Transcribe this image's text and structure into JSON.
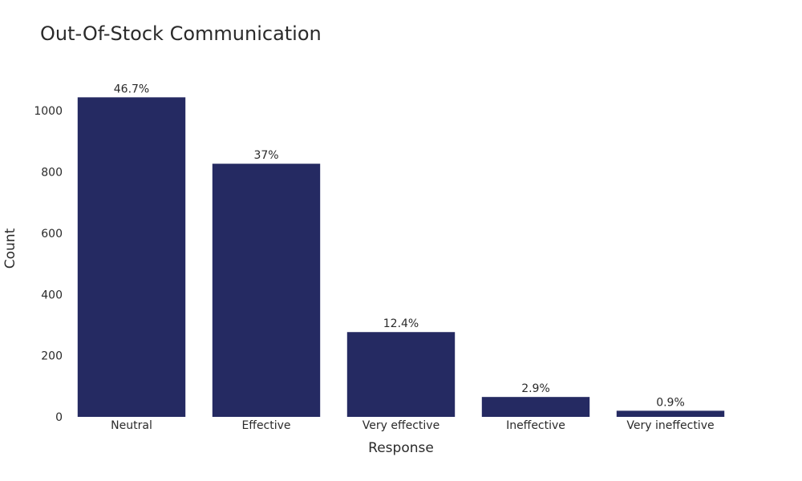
{
  "chart_data": {
    "type": "bar",
    "title": "Out-Of-Stock Communication",
    "xlabel": "Response",
    "ylabel": "Count",
    "categories": [
      "Neutral",
      "Effective",
      "Very effective",
      "Ineffective",
      "Very ineffective"
    ],
    "values": [
      1044,
      827,
      277,
      65,
      20
    ],
    "data_labels": [
      "46.7%",
      "37%",
      "12.4%",
      "2.9%",
      "0.9%"
    ],
    "yticks": [
      0,
      200,
      400,
      600,
      800,
      1000
    ],
    "ytick_labels": [
      "0",
      "200",
      "400",
      "600",
      "800",
      "1000"
    ],
    "ylim": [
      0,
      1100
    ],
    "grid": false,
    "bar_color": "#252a62",
    "text_color": "#2a2a2a"
  }
}
